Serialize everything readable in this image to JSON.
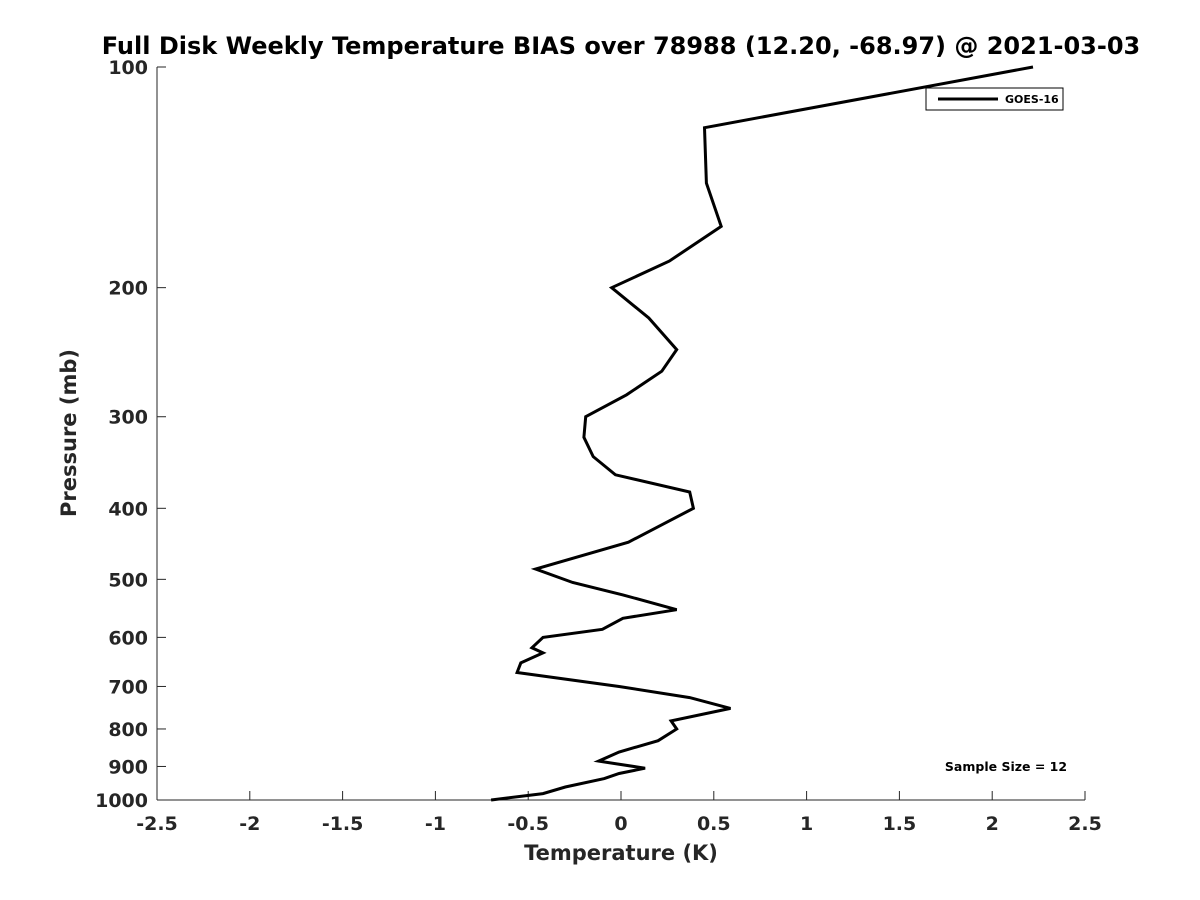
{
  "chart_data": {
    "type": "line",
    "title": "Full Disk Weekly Temperature BIAS over 78988 (12.20, -68.97) @ 2021-03-03",
    "xlabel": "Temperature (K)",
    "ylabel": "Pressure (mb)",
    "xlim": [
      -2.5,
      2.5
    ],
    "ylim": [
      100,
      1000
    ],
    "y_scale": "log",
    "y_reversed": true,
    "x_ticks": [
      "-2.5",
      "-2",
      "-1.5",
      "-1",
      "-0.5",
      "0",
      "0.5",
      "1",
      "1.5",
      "2",
      "2.5"
    ],
    "y_ticks": [
      "100",
      "200",
      "300",
      "400",
      "500",
      "600",
      "700",
      "800",
      "900",
      "1000"
    ],
    "grid": false,
    "legend_position": "top-right",
    "annotation": "Sample Size = 12",
    "series": [
      {
        "name": "GOES-16",
        "color": "#000000",
        "points": [
          {
            "x": 2.22,
            "p": 100
          },
          {
            "x": 0.45,
            "p": 121
          },
          {
            "x": 0.46,
            "p": 144
          },
          {
            "x": 0.54,
            "p": 165
          },
          {
            "x": 0.26,
            "p": 184
          },
          {
            "x": -0.05,
            "p": 200
          },
          {
            "x": 0.15,
            "p": 220
          },
          {
            "x": 0.3,
            "p": 243
          },
          {
            "x": 0.22,
            "p": 260
          },
          {
            "x": 0.03,
            "p": 280
          },
          {
            "x": -0.19,
            "p": 300
          },
          {
            "x": -0.2,
            "p": 320
          },
          {
            "x": -0.15,
            "p": 340
          },
          {
            "x": -0.03,
            "p": 360
          },
          {
            "x": 0.37,
            "p": 380
          },
          {
            "x": 0.39,
            "p": 400
          },
          {
            "x": 0.23,
            "p": 420
          },
          {
            "x": 0.04,
            "p": 445
          },
          {
            "x": -0.46,
            "p": 484
          },
          {
            "x": -0.26,
            "p": 505
          },
          {
            "x": 0.01,
            "p": 525
          },
          {
            "x": 0.3,
            "p": 550
          },
          {
            "x": 0.01,
            "p": 565
          },
          {
            "x": -0.1,
            "p": 585
          },
          {
            "x": -0.42,
            "p": 600
          },
          {
            "x": -0.48,
            "p": 620
          },
          {
            "x": -0.42,
            "p": 630
          },
          {
            "x": -0.54,
            "p": 650
          },
          {
            "x": -0.56,
            "p": 670
          },
          {
            "x": -0.01,
            "p": 700
          },
          {
            "x": 0.37,
            "p": 725
          },
          {
            "x": 0.59,
            "p": 750
          },
          {
            "x": 0.27,
            "p": 780
          },
          {
            "x": 0.3,
            "p": 800
          },
          {
            "x": 0.2,
            "p": 830
          },
          {
            "x": -0.01,
            "p": 860
          },
          {
            "x": -0.12,
            "p": 885
          },
          {
            "x": 0.13,
            "p": 905
          },
          {
            "x": -0.01,
            "p": 920
          },
          {
            "x": -0.09,
            "p": 935
          },
          {
            "x": -0.3,
            "p": 960
          },
          {
            "x": -0.42,
            "p": 980
          },
          {
            "x": -0.7,
            "p": 1000
          }
        ]
      }
    ]
  }
}
